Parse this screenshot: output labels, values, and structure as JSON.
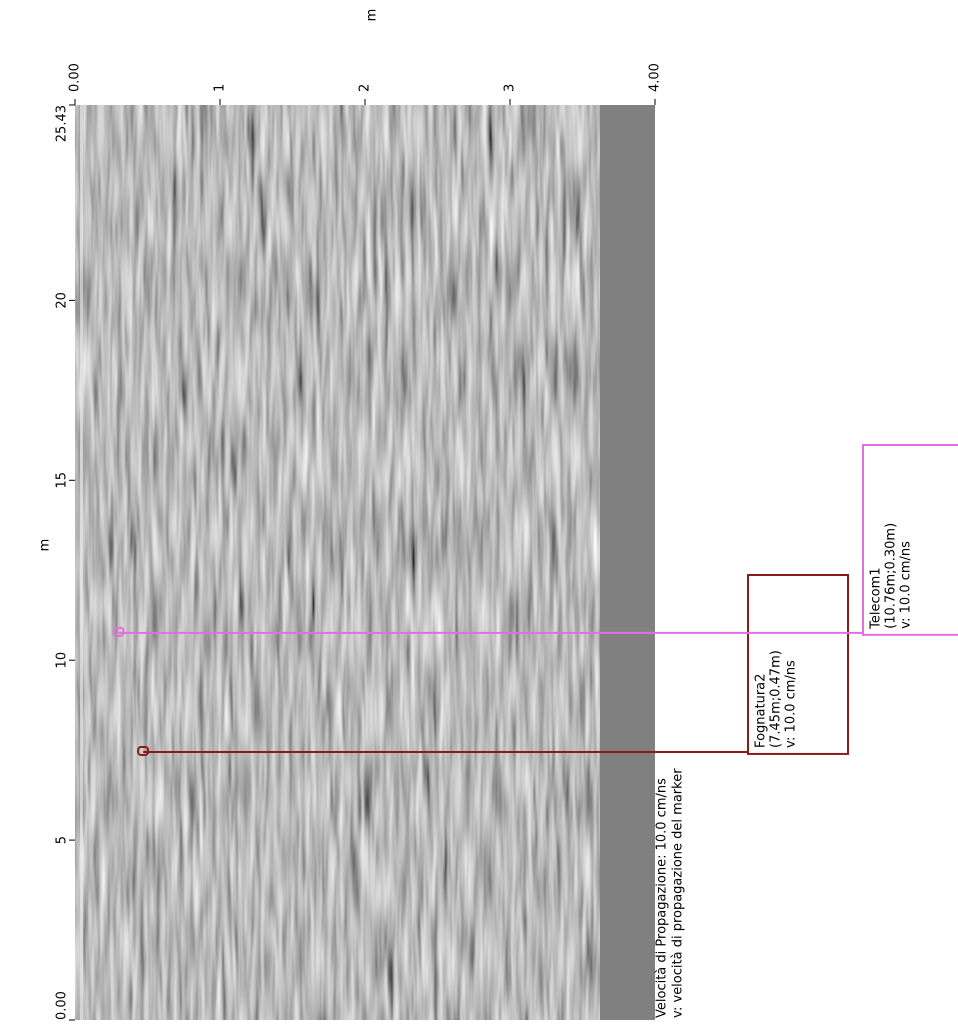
{
  "chart_data": {
    "type": "radargram",
    "x_label": "m",
    "y_label": "m",
    "xlim": [
      0,
      25.43
    ],
    "xticks": [
      {
        "value": 0,
        "label": "0.00"
      },
      5,
      10,
      15,
      20,
      25.43
    ],
    "ylim": [
      0,
      4
    ],
    "yticks": [
      {
        "value": 0,
        "label": "0.00"
      },
      1,
      2,
      3,
      {
        "value": 4,
        "label": "4.00"
      }
    ],
    "velocity_note": "Velocità di Propagazione:  10.0 cm/ns",
    "velocity_legend": "v: velocità di propagazione del marker",
    "markers": [
      {
        "name": "Fognatura2",
        "coords_label": "(7.45m;0.47m)",
        "velocity_label": "v: 10.0 cm/ns",
        "x": 7.45,
        "y": 0.47,
        "color": "#8b1a1a"
      },
      {
        "name": "Telecom1",
        "coords_label": "(10.76m;0.30m)",
        "velocity_label": "v: 10.0 cm/ns",
        "x": 10.76,
        "y": 0.3,
        "color": "#e070e0"
      }
    ]
  }
}
